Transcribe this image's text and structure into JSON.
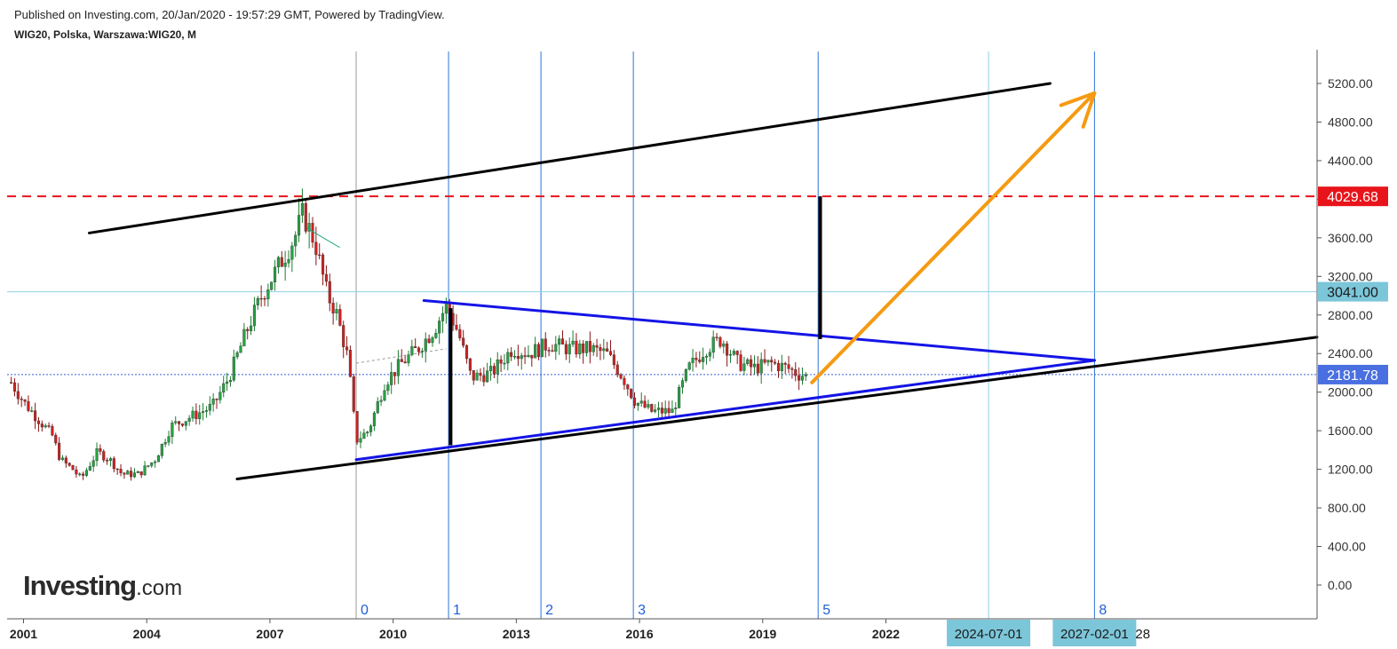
{
  "header": {
    "published": "Published on Investing.com, 20/Jan/2020 - 19:57:29 GMT, Powered by TradingView.",
    "symbol": "WIG20, Polska, Warszawa:WIG20, M"
  },
  "logo": {
    "main": "Investing",
    "suffix": ".com"
  },
  "colors": {
    "resistance": "#e8141b",
    "price_badge": "#4a6fe0",
    "level_badge": "#7cc6d9",
    "arrow": "#f59a12",
    "triangle": "#1414e6",
    "channel": "#000000",
    "fib_lines": "#2a74d9",
    "date_badge": "#7cc6d9"
  },
  "chart_data": {
    "type": "candlestick",
    "interval": "M",
    "x_axis": {
      "type": "time",
      "range": [
        2000.6,
        2032.5
      ],
      "tick_labels": [
        "2001",
        "2004",
        "2007",
        "2010",
        "2013",
        "2016",
        "2019",
        "2022"
      ]
    },
    "y_axis": {
      "range": [
        -350,
        5550
      ],
      "side": "right",
      "tick_labels": [
        "0.00",
        "400.00",
        "800.00",
        "1200.00",
        "1600.00",
        "2000.00",
        "2400.00",
        "2800.00",
        "3200.00",
        "3600.00",
        "4000.00",
        "4400.00",
        "4800.00",
        "5200.00"
      ]
    },
    "price_path": [
      [
        2000.7,
        2100
      ],
      [
        2001.0,
        1900
      ],
      [
        2001.3,
        1750
      ],
      [
        2001.7,
        1550
      ],
      [
        2001.9,
        1300
      ],
      [
        2002.2,
        1200
      ],
      [
        2002.4,
        1100
      ],
      [
        2002.8,
        1380
      ],
      [
        2003.1,
        1300
      ],
      [
        2003.4,
        1150
      ],
      [
        2003.8,
        1150
      ],
      [
        2004.2,
        1300
      ],
      [
        2004.6,
        1650
      ],
      [
        2005.1,
        1750
      ],
      [
        2005.6,
        1850
      ],
      [
        2006.0,
        2150
      ],
      [
        2006.4,
        2600
      ],
      [
        2006.8,
        3000
      ],
      [
        2007.2,
        3300
      ],
      [
        2007.6,
        3600
      ],
      [
        2007.8,
        3850
      ],
      [
        2008.1,
        3550
      ],
      [
        2008.4,
        3000
      ],
      [
        2008.6,
        2850
      ],
      [
        2008.9,
        2350
      ],
      [
        2009.1,
        1500
      ],
      [
        2009.4,
        1600
      ],
      [
        2009.8,
        2100
      ],
      [
        2010.2,
        2300
      ],
      [
        2010.6,
        2450
      ],
      [
        2011.0,
        2650
      ],
      [
        2011.3,
        2900
      ],
      [
        2011.6,
        2600
      ],
      [
        2011.9,
        2150
      ],
      [
        2012.4,
        2200
      ],
      [
        2012.9,
        2450
      ],
      [
        2013.3,
        2400
      ],
      [
        2013.8,
        2500
      ],
      [
        2014.3,
        2450
      ],
      [
        2014.8,
        2450
      ],
      [
        2015.2,
        2400
      ],
      [
        2015.6,
        2150
      ],
      [
        2015.9,
        1900
      ],
      [
        2016.3,
        1800
      ],
      [
        2016.8,
        1800
      ],
      [
        2017.2,
        2250
      ],
      [
        2017.6,
        2450
      ],
      [
        2018.0,
        2550
      ],
      [
        2018.4,
        2300
      ],
      [
        2018.8,
        2250
      ],
      [
        2019.2,
        2300
      ],
      [
        2019.6,
        2250
      ],
      [
        2019.9,
        2180
      ],
      [
        2020.05,
        2181.78
      ]
    ],
    "price_last": 2181.78,
    "levels": [
      {
        "price": 4029.68,
        "label": "4029.68",
        "style": "dashed"
      },
      {
        "price": 3041.0,
        "label": "3041.00",
        "style": "solid"
      },
      {
        "price": 2181.78,
        "label": "2181.78",
        "style": "dotted"
      }
    ],
    "fib_time_zones": [
      {
        "num": "0",
        "x": 2009.1
      },
      {
        "num": "1",
        "x": 2011.35
      },
      {
        "num": "2",
        "x": 2013.6
      },
      {
        "num": "3",
        "x": 2015.85
      },
      {
        "num": "5",
        "x": 2020.35
      },
      {
        "num": "",
        "x": 2024.5
      },
      {
        "num": "8",
        "x": 2027.08
      }
    ],
    "date_badges": [
      {
        "label": "2024-07-01",
        "x": 2024.5
      },
      {
        "label": "2027-02-01",
        "x": 2027.08
      }
    ],
    "date_badge_tail": "28",
    "trend_lines": [
      {
        "kind": "channel-upper",
        "from": [
          2002.6,
          3650
        ],
        "to": [
          2026.0,
          5200
        ]
      },
      {
        "kind": "channel-lower",
        "from": [
          2006.2,
          1100
        ],
        "to": [
          2032.5,
          2570
        ]
      },
      {
        "kind": "triangle-upper",
        "from": [
          2010.75,
          2950
        ],
        "to": [
          2027.08,
          2330
        ]
      },
      {
        "kind": "triangle-lower",
        "from": [
          2009.1,
          1300
        ],
        "to": [
          2027.08,
          2330
        ]
      }
    ],
    "measure_lines": [
      {
        "x": 2011.4,
        "from": 1450,
        "to": 2870
      },
      {
        "x": 2020.4,
        "from": 2550,
        "to": 4029.68
      }
    ],
    "arrow": {
      "from": [
        2020.2,
        2100
      ],
      "to": [
        2027.08,
        5100
      ]
    },
    "annotation_small": {
      "from": [
        2007.9,
        3700
      ],
      "to": [
        2008.7,
        3500
      ]
    },
    "dash_segment": {
      "from": [
        2009.1,
        2300
      ],
      "to": [
        2011.3,
        2450
      ]
    }
  }
}
